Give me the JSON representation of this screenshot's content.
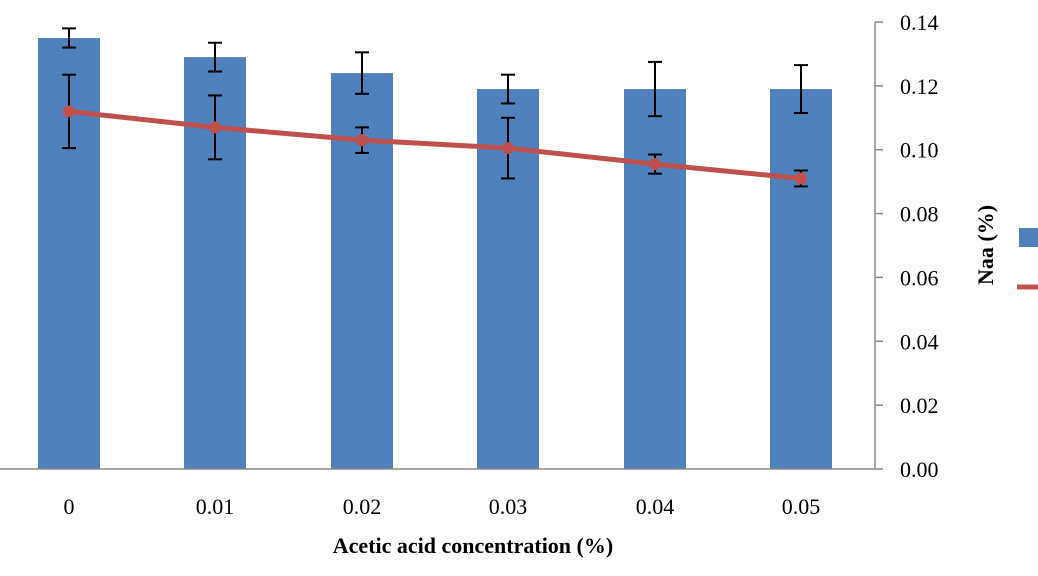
{
  "chart_data": {
    "type": "bar",
    "title": "",
    "xlabel": "Acetic acid concentration (%)",
    "categories": [
      "0",
      "0.01",
      "0.02",
      "0.03",
      "0.04",
      "0.05"
    ],
    "x_values": [
      0,
      0.01,
      0.02,
      0.03,
      0.04,
      0.05
    ],
    "y2label": "Naa (%)",
    "y2lim": [
      0,
      0.14
    ],
    "y2ticks": [
      "0.00",
      "0.02",
      "0.04",
      "0.06",
      "0.08",
      "0.10",
      "0.12",
      "0.14"
    ],
    "series": [
      {
        "type": "bar",
        "color": "#4F81BD",
        "axis_ratio_of_right": true,
        "values_on_right_scale": [
          0.135,
          0.129,
          0.124,
          0.119,
          0.119,
          0.119
        ],
        "errors_on_right_scale": [
          0.003,
          0.0045,
          0.0065,
          0.0045,
          0.0085,
          0.0075
        ]
      },
      {
        "type": "line",
        "axis": "right",
        "color": "#C0504D",
        "values": [
          0.112,
          0.107,
          0.103,
          0.1005,
          0.0955,
          0.091
        ],
        "errors": [
          0.0115,
          0.01,
          0.004,
          0.0095,
          0.003,
          0.0025
        ]
      }
    ],
    "legend_position": "right",
    "grid": false
  }
}
